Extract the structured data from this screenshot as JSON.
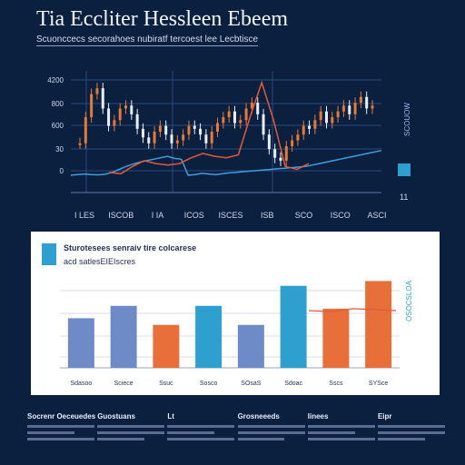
{
  "title": "Tia Eccliter Hessleen Ebeem",
  "subtitle": "Scuonccecs secorahoes nubiratf tercoest lee Lecbtisce",
  "right_legend": "SCOUOW",
  "right_key_label": "11",
  "panel": {
    "title": "Sturotesees senraiv tire colcarese",
    "subtitle": "acd satlesEIEIscres",
    "legend": "OSOCSLOA"
  },
  "colors": {
    "background": "#0b1f3f",
    "up_candle": "#e37a3a",
    "down_candle": "#e8eefc",
    "signal_line": "#3aa0e0",
    "spike_line": "#e25a3a",
    "bar_blue": "#6e8bc7",
    "bar_orange": "#e86e3a",
    "bar_teal": "#2f9fd0",
    "accent": "#2f9fd0"
  },
  "footer": [
    {
      "heading": "Socrenr Oeceuedes"
    },
    {
      "heading": "Guostuans"
    },
    {
      "heading": "Lt"
    },
    {
      "heading": "Grosneeeds"
    },
    {
      "heading": "Iinees"
    },
    {
      "heading": "Eipr"
    }
  ],
  "chart_data": [
    {
      "type": "line",
      "title": "",
      "xlabel": "",
      "ylabel": "",
      "x_ticks": [
        "I LES",
        "ISCOB",
        "I IA",
        "ICOS",
        "ISCES",
        "ISB",
        "SCO",
        "ISCO",
        "ASCI"
      ],
      "y_ticks": [
        "4200",
        "800",
        "600",
        "30",
        "0"
      ],
      "ylim": [
        0,
        4200
      ],
      "grid": true,
      "series": [
        {
          "style": "candles",
          "values": [
            1700,
            2600,
            3400,
            3600,
            2900,
            2300,
            2500,
            2900,
            3000,
            2700,
            2200,
            1900,
            1700,
            2100,
            2300,
            2000,
            1700,
            1800,
            2000,
            2300,
            2200,
            2000,
            1700,
            2100,
            2400,
            2600,
            2800,
            2400,
            2500,
            2900,
            3100,
            2700,
            2000,
            1500,
            1200,
            1100,
            1600,
            1800,
            2000,
            2300,
            2200,
            2500,
            2800,
            2400,
            2600,
            2800,
            3000,
            2700,
            3100,
            3300,
            2900,
            3000
          ]
        },
        {
          "style": "line",
          "values": [
            600,
            620,
            640,
            620,
            610,
            630,
            700,
            800,
            900,
            980,
            1050,
            1100,
            1150,
            1200,
            1250,
            1180,
            1150,
            600,
            620,
            660,
            640,
            620,
            650,
            680,
            700,
            720,
            740,
            760,
            780,
            800,
            820,
            840,
            860,
            880,
            900,
            950,
            1000,
            1050,
            1100,
            1150,
            1200,
            1250,
            1300,
            1350,
            1400,
            1450
          ]
        },
        {
          "style": "spike",
          "values": [
            700,
            650,
            900,
            1100,
            1000,
            950,
            1000,
            1200,
            1350,
            1250,
            1200,
            1300,
            2600,
            3800,
            2500,
            900,
            800,
            1000
          ]
        }
      ]
    },
    {
      "type": "bar",
      "title": "",
      "xlabel": "",
      "ylabel": "",
      "categories": [
        "Sdasoo",
        "Sciece",
        "Ssuc",
        "Sosco",
        "SOsaS",
        "Sdoac",
        "Sscs",
        "SYSce"
      ],
      "values": [
        52,
        65,
        45,
        65,
        45,
        86,
        62,
        91
      ],
      "bar_colors": [
        "#6e8bc7",
        "#6e8bc7",
        "#e86e3a",
        "#2f9fd0",
        "#6e8bc7",
        "#2f9fd0",
        "#e86e3a",
        "#e86e3a"
      ],
      "overlay_line": [
        60,
        59,
        62,
        61,
        60
      ],
      "ylim": [
        0,
        100
      ],
      "grid": true
    }
  ]
}
